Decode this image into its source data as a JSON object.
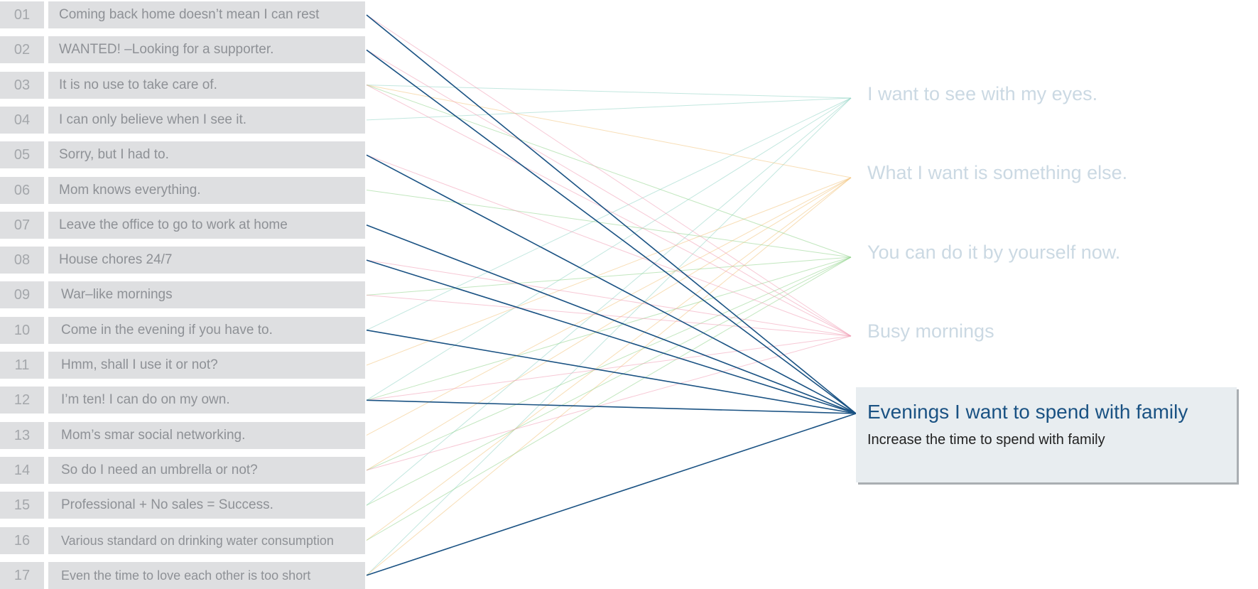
{
  "items": [
    {
      "num": "01",
      "label": "Coming back home doesn’t mean I can rest"
    },
    {
      "num": "02",
      "label": "WANTED! –Looking for a supporter."
    },
    {
      "num": "03",
      "label": "It is no use to take care of."
    },
    {
      "num": "04",
      "label": "I can only believe when I see it."
    },
    {
      "num": "05",
      "label": "Sorry, but I had to."
    },
    {
      "num": "06",
      "label": "Mom knows everything."
    },
    {
      "num": "07",
      "label": "Leave the office to go to work at home"
    },
    {
      "num": "08",
      "label": "House chores 24/7"
    },
    {
      "num": "09",
      "label": "War–like mornings"
    },
    {
      "num": "10",
      "label": "Come in the evening if you have to."
    },
    {
      "num": "11",
      "label": "Hmm, shall I use it or not?"
    },
    {
      "num": "12",
      "label": "I’m ten! I can do on my own."
    },
    {
      "num": "13",
      "label": "Mom’s smar social networking."
    },
    {
      "num": "14",
      "label": "So do I need an umbrella or not?"
    },
    {
      "num": "15",
      "label": "Professional + No sales = Success."
    },
    {
      "num": "16",
      "label": "Various standard on drinking water consumption"
    },
    {
      "num": "17",
      "label": "Even the time to love each other is too short"
    }
  ],
  "categories": [
    {
      "label": "I want to see with my eyes.",
      "color": "#8fd3c4"
    },
    {
      "label": "What I want is something else.",
      "color": "#f3c27a"
    },
    {
      "label": "You can do it by yourself now.",
      "color": "#8fd48a"
    },
    {
      "label": "Busy mornings",
      "color": "#f09ab2"
    },
    {
      "label": "Evenings I want to spend with family",
      "color": "#1a5283"
    }
  ],
  "selected": {
    "title": "Evenings I want to spend with family",
    "subtitle": "Increase the time to spend with family"
  },
  "links": [
    {
      "from": 1,
      "to": 4
    },
    {
      "from": 2,
      "to": 4
    },
    {
      "from": 5,
      "to": 4
    },
    {
      "from": 7,
      "to": 4
    },
    {
      "from": 8,
      "to": 4
    },
    {
      "from": 10,
      "to": 4
    },
    {
      "from": 12,
      "to": 4
    },
    {
      "from": 17,
      "to": 4
    },
    {
      "from": 3,
      "to": 0
    },
    {
      "from": 4,
      "to": 0
    },
    {
      "from": 10,
      "to": 0
    },
    {
      "from": 12,
      "to": 0
    },
    {
      "from": 15,
      "to": 0
    },
    {
      "from": 17,
      "to": 0
    },
    {
      "from": 3,
      "to": 1
    },
    {
      "from": 11,
      "to": 1
    },
    {
      "from": 13,
      "to": 1
    },
    {
      "from": 14,
      "to": 1
    },
    {
      "from": 16,
      "to": 1
    },
    {
      "from": 17,
      "to": 1
    },
    {
      "from": 3,
      "to": 2
    },
    {
      "from": 6,
      "to": 2
    },
    {
      "from": 9,
      "to": 2
    },
    {
      "from": 12,
      "to": 2
    },
    {
      "from": 14,
      "to": 2
    },
    {
      "from": 15,
      "to": 2
    },
    {
      "from": 16,
      "to": 2
    },
    {
      "from": 1,
      "to": 3
    },
    {
      "from": 2,
      "to": 3
    },
    {
      "from": 3,
      "to": 3
    },
    {
      "from": 5,
      "to": 3
    },
    {
      "from": 8,
      "to": 3
    },
    {
      "from": 9,
      "to": 3
    },
    {
      "from": 12,
      "to": 3
    },
    {
      "from": 14,
      "to": 3
    }
  ]
}
